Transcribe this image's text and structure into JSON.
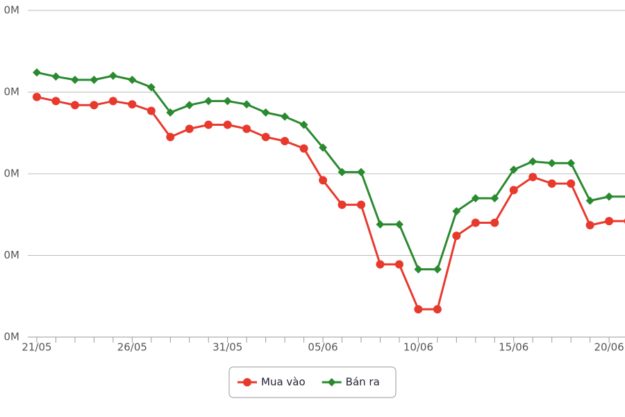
{
  "chart_data": {
    "type": "line",
    "categories": [
      "21/05",
      null,
      null,
      null,
      null,
      "26/05",
      null,
      null,
      null,
      null,
      "31/05",
      null,
      null,
      null,
      null,
      "05/06",
      null,
      null,
      null,
      null,
      "10/06",
      null,
      null,
      null,
      null,
      "15/06",
      null,
      null,
      null,
      null,
      "20/06",
      null
    ],
    "series": [
      {
        "name": "Mua vào",
        "color": "#e8392d",
        "marker": "circle",
        "values": [
          69.4,
          68.9,
          68.4,
          68.4,
          68.9,
          68.5,
          67.7,
          64.5,
          65.5,
          66.0,
          66.0,
          65.5,
          64.5,
          64.0,
          63.1,
          59.2,
          56.2,
          56.2,
          48.9,
          48.9,
          43.4,
          43.4,
          52.4,
          54.0,
          54.0,
          58.0,
          59.6,
          58.8,
          58.8,
          53.7,
          54.2,
          54.2
        ]
      },
      {
        "name": "Bán ra",
        "color": "#2a8a2f",
        "marker": "diamond",
        "values": [
          72.4,
          71.9,
          71.5,
          71.5,
          72.0,
          71.5,
          70.6,
          67.5,
          68.4,
          68.9,
          68.9,
          68.5,
          67.5,
          67.0,
          66.0,
          63.2,
          60.2,
          60.2,
          53.8,
          53.8,
          48.3,
          48.3,
          55.4,
          57.0,
          57.0,
          60.5,
          61.5,
          61.3,
          61.3,
          56.7,
          57.2,
          57.2
        ]
      }
    ],
    "ylim": [
      40,
      80
    ],
    "yticks": [
      {
        "value": 40,
        "label": "0M"
      },
      {
        "value": 50,
        "label": "0M"
      },
      {
        "value": 60,
        "label": "0M"
      },
      {
        "value": 70,
        "label": "0M"
      },
      {
        "value": 80,
        "label": "0M"
      }
    ],
    "grid": true,
    "legend": "bottom"
  }
}
